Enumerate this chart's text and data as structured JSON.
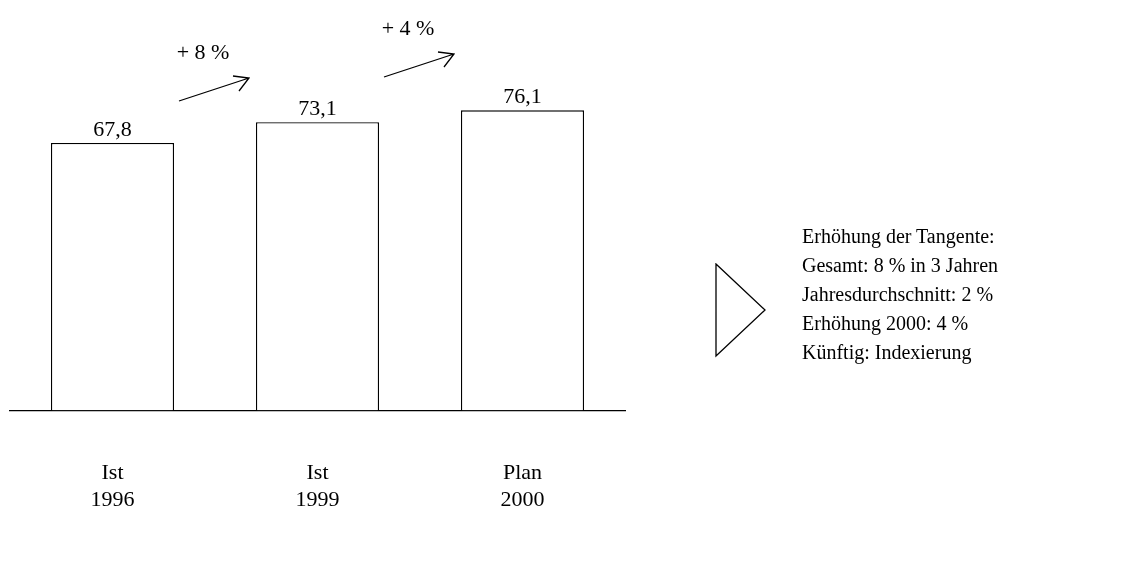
{
  "chart_data": {
    "type": "bar",
    "categories": [
      "Ist\n1996",
      "Ist\n1999",
      "Plan\n2000"
    ],
    "values": [
      67.8,
      73.1,
      76.1
    ],
    "value_labels": [
      "67,8",
      "73,1",
      "76,1"
    ],
    "color": "#ffffff",
    "annotations": [
      "+ 8 %",
      "+ 4 %",
      "Erhöhung der Tangente:",
      "Gesamt: 8 % in 3 Jahren",
      "Jahresdurchschnitt: 2 %",
      "Erhöhung 2000: 4 %",
      "Künftig: Indexierung"
    ],
    "grid": false,
    "legend": false
  }
}
